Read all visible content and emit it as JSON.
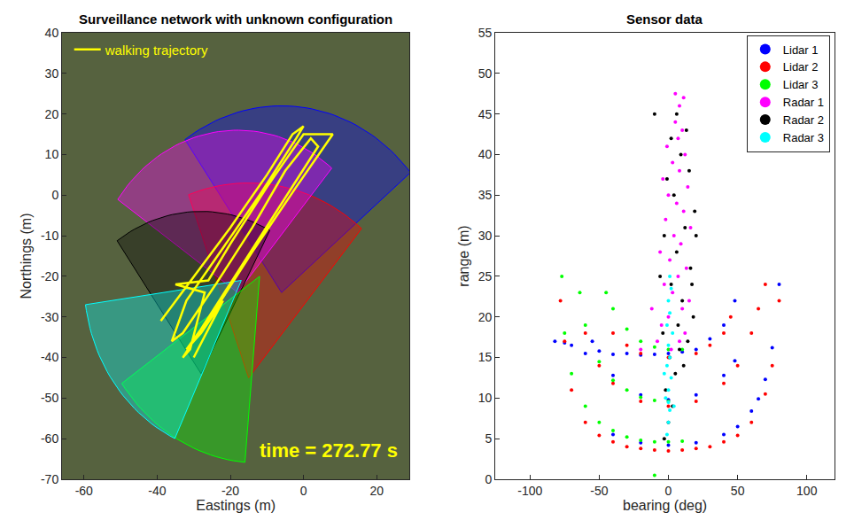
{
  "chart_data": [
    {
      "type": "map",
      "title": "Surveillance network with unknown configuration",
      "x_label": "Eastings (m)",
      "y_label": "Northings (m)",
      "xlim": [
        -66,
        29
      ],
      "ylim": [
        -70,
        40
      ],
      "xticks": [
        -60,
        -40,
        -20,
        0,
        20
      ],
      "yticks": [
        -70,
        -60,
        -50,
        -40,
        -30,
        -20,
        -10,
        0,
        10,
        20,
        30,
        40
      ],
      "grid": false,
      "legend": "upper left",
      "sectors": [
        {
          "color": "#0000ff",
          "center": [
            -6,
            -24
          ],
          "radius": 46,
          "angles": [
            40,
            125
          ]
        },
        {
          "color": "#ff0000",
          "center": [
            -15,
            -45
          ],
          "radius": 48,
          "angles": [
            50,
            110
          ]
        },
        {
          "color": "#ff00ff",
          "center": [
            -18,
            -24
          ],
          "radius": 40,
          "angles": [
            50,
            145
          ]
        },
        {
          "color": "#000000",
          "center": [
            -28,
            -44
          ],
          "radius": 40,
          "angles": [
            62,
            125
          ]
        },
        {
          "color": "#00ff00",
          "center": [
            -12,
            -20
          ],
          "radius": 46,
          "angles": [
            215,
            265
          ]
        },
        {
          "color": "#00ffff",
          "center": [
            -17,
            -21
          ],
          "radius": 43,
          "angles": [
            188,
            245
          ]
        }
      ],
      "series": [
        {
          "name": "walking trajectory",
          "color": "#ffff00",
          "line_style": "solid",
          "x": [
            -39,
            -30,
            -20,
            -10,
            -3,
            0,
            -2,
            -12,
            -22,
            -32,
            -36,
            -33,
            -24,
            -14,
            -5,
            2,
            4,
            -6,
            -16,
            -26,
            -33,
            -31,
            -27,
            -35,
            -26,
            -20,
            -10,
            0,
            8,
            -2,
            -14,
            -24,
            -32,
            -28,
            -22,
            -30
          ],
          "y": [
            -31,
            -20,
            -8,
            5,
            15,
            17,
            14,
            0,
            -13,
            -26,
            -36,
            -34,
            -22,
            -8,
            6,
            14,
            12,
            -2,
            -16,
            -30,
            -40,
            -38,
            -24,
            -22,
            -21,
            -12,
            2,
            15,
            15,
            2,
            -14,
            -28,
            -38,
            -34,
            -26,
            -40
          ]
        }
      ],
      "annotations": [
        {
          "text": "time = 272.77 s"
        }
      ]
    },
    {
      "type": "scatter",
      "title": "Sensor data",
      "x_label": "bearing (deg)",
      "y_label": "range (m)",
      "xlim": [
        -125,
        120
      ],
      "ylim": [
        0,
        55
      ],
      "xticks": [
        -100,
        -50,
        0,
        50,
        100
      ],
      "yticks": [
        0,
        5,
        10,
        15,
        20,
        25,
        30,
        35,
        40,
        45,
        50,
        55
      ],
      "grid": false,
      "legend": "upper right",
      "marker": "dot",
      "series": [
        {
          "name": "Lidar 1",
          "color": "#0000ff",
          "x": [
            -40,
            -20,
            0,
            20,
            40,
            50,
            60,
            65,
            70,
            75,
            80,
            -55,
            -40,
            -20,
            0,
            20,
            40,
            48,
            -82,
            -75,
            -70,
            -60,
            -50,
            -40,
            -30,
            -20,
            -10,
            0,
            10,
            20,
            30,
            40,
            48
          ],
          "y": [
            5.5,
            4.5,
            4.2,
            4.5,
            5.5,
            6.5,
            8.4,
            9.9,
            12.3,
            16.2,
            24,
            17,
            12.8,
            10.4,
            9.8,
            10.4,
            12.8,
            14.6,
            17,
            16.8,
            16.5,
            15.5,
            15.8,
            15.4,
            15.5,
            15.3,
            15.4,
            15.5,
            15.7,
            16,
            17.3,
            19,
            22
          ]
        },
        {
          "name": "Lidar 2",
          "color": "#ff0000",
          "x": [
            -78,
            -75,
            -70,
            -60,
            -50,
            -40,
            -30,
            -20,
            -10,
            0,
            10,
            20,
            30,
            40,
            50,
            60,
            70,
            75,
            80,
            -60,
            -50,
            -40,
            -20,
            0,
            20,
            40,
            50,
            60,
            65,
            70,
            -40,
            -30,
            -20,
            0,
            20,
            30,
            40,
            45
          ],
          "y": [
            22,
            17,
            11,
            7,
            5.4,
            4.6,
            4,
            3.8,
            3.6,
            3.5,
            3.6,
            3.8,
            4,
            4.6,
            5.4,
            7,
            10.5,
            14,
            22,
            18,
            14,
            11.8,
            9.6,
            9,
            9.6,
            11.8,
            14,
            18,
            21,
            24,
            18,
            16.5,
            15.5,
            15,
            15.5,
            16.5,
            18,
            20
          ]
        },
        {
          "name": "Lidar 3",
          "color": "#00ff00",
          "x": [
            -77,
            -75,
            -70,
            -60,
            -50,
            -40,
            -30,
            -20,
            -10,
            0,
            10,
            -64,
            -60,
            -50,
            -40,
            -30,
            -20,
            -10,
            0,
            -45,
            -40,
            -30,
            -20,
            -10,
            0,
            10,
            -10
          ],
          "y": [
            25,
            18,
            13,
            9,
            7,
            6,
            5.2,
            4.8,
            4.6,
            4.6,
            4.7,
            23,
            19,
            14.5,
            12.2,
            11,
            10.1,
            9.7,
            9.6,
            23,
            21,
            18.5,
            17,
            16.3,
            16,
            16,
            0.5
          ]
        },
        {
          "name": "Radar 1",
          "color": "#ff00ff",
          "x": [
            2,
            8,
            12,
            -5,
            0,
            10,
            15,
            3,
            -3,
            7,
            13,
            1,
            -6,
            9,
            4,
            16,
            -2,
            11,
            6,
            0,
            14,
            -4,
            8,
            3,
            12,
            -1,
            7,
            10,
            5,
            8,
            5,
            11,
            -12,
            -8,
            -20
          ],
          "y": [
            16,
            17,
            18,
            19,
            20,
            21,
            22,
            23,
            24,
            25,
            26,
            27,
            28,
            29,
            30,
            31,
            32,
            33,
            34,
            35,
            36,
            37,
            38,
            39,
            40,
            41,
            42,
            43,
            44,
            46,
            47.5,
            47,
            21,
            17,
            16
          ]
        },
        {
          "name": "Radar 2",
          "color": "#000000",
          "x": [
            -3,
            0,
            3,
            -2,
            5,
            1,
            8,
            14,
            -4,
            18,
            10,
            2,
            16,
            6,
            -3,
            12,
            19,
            4,
            -1,
            15,
            9,
            2,
            13,
            6,
            -10,
            17,
            20,
            -6,
            11,
            7
          ],
          "y": [
            5,
            7,
            9,
            11,
            13,
            15,
            16,
            17,
            18,
            20,
            22,
            24,
            26,
            28,
            30,
            31,
            33,
            35,
            37,
            38,
            40,
            42,
            43,
            45,
            45,
            24,
            30,
            25,
            14,
            19
          ]
        },
        {
          "name": "Radar 3",
          "color": "#00ffff",
          "x": [
            -1,
            0,
            1,
            -2,
            0,
            2,
            -1,
            1,
            0,
            3,
            -1,
            1,
            0,
            2,
            1,
            -3,
            4,
            0
          ],
          "y": [
            5.5,
            7,
            8.5,
            10,
            11,
            12.5,
            14,
            15,
            16.5,
            18,
            19,
            20.5,
            22,
            23.5,
            25,
            13,
            9,
            9.5
          ]
        }
      ]
    }
  ]
}
